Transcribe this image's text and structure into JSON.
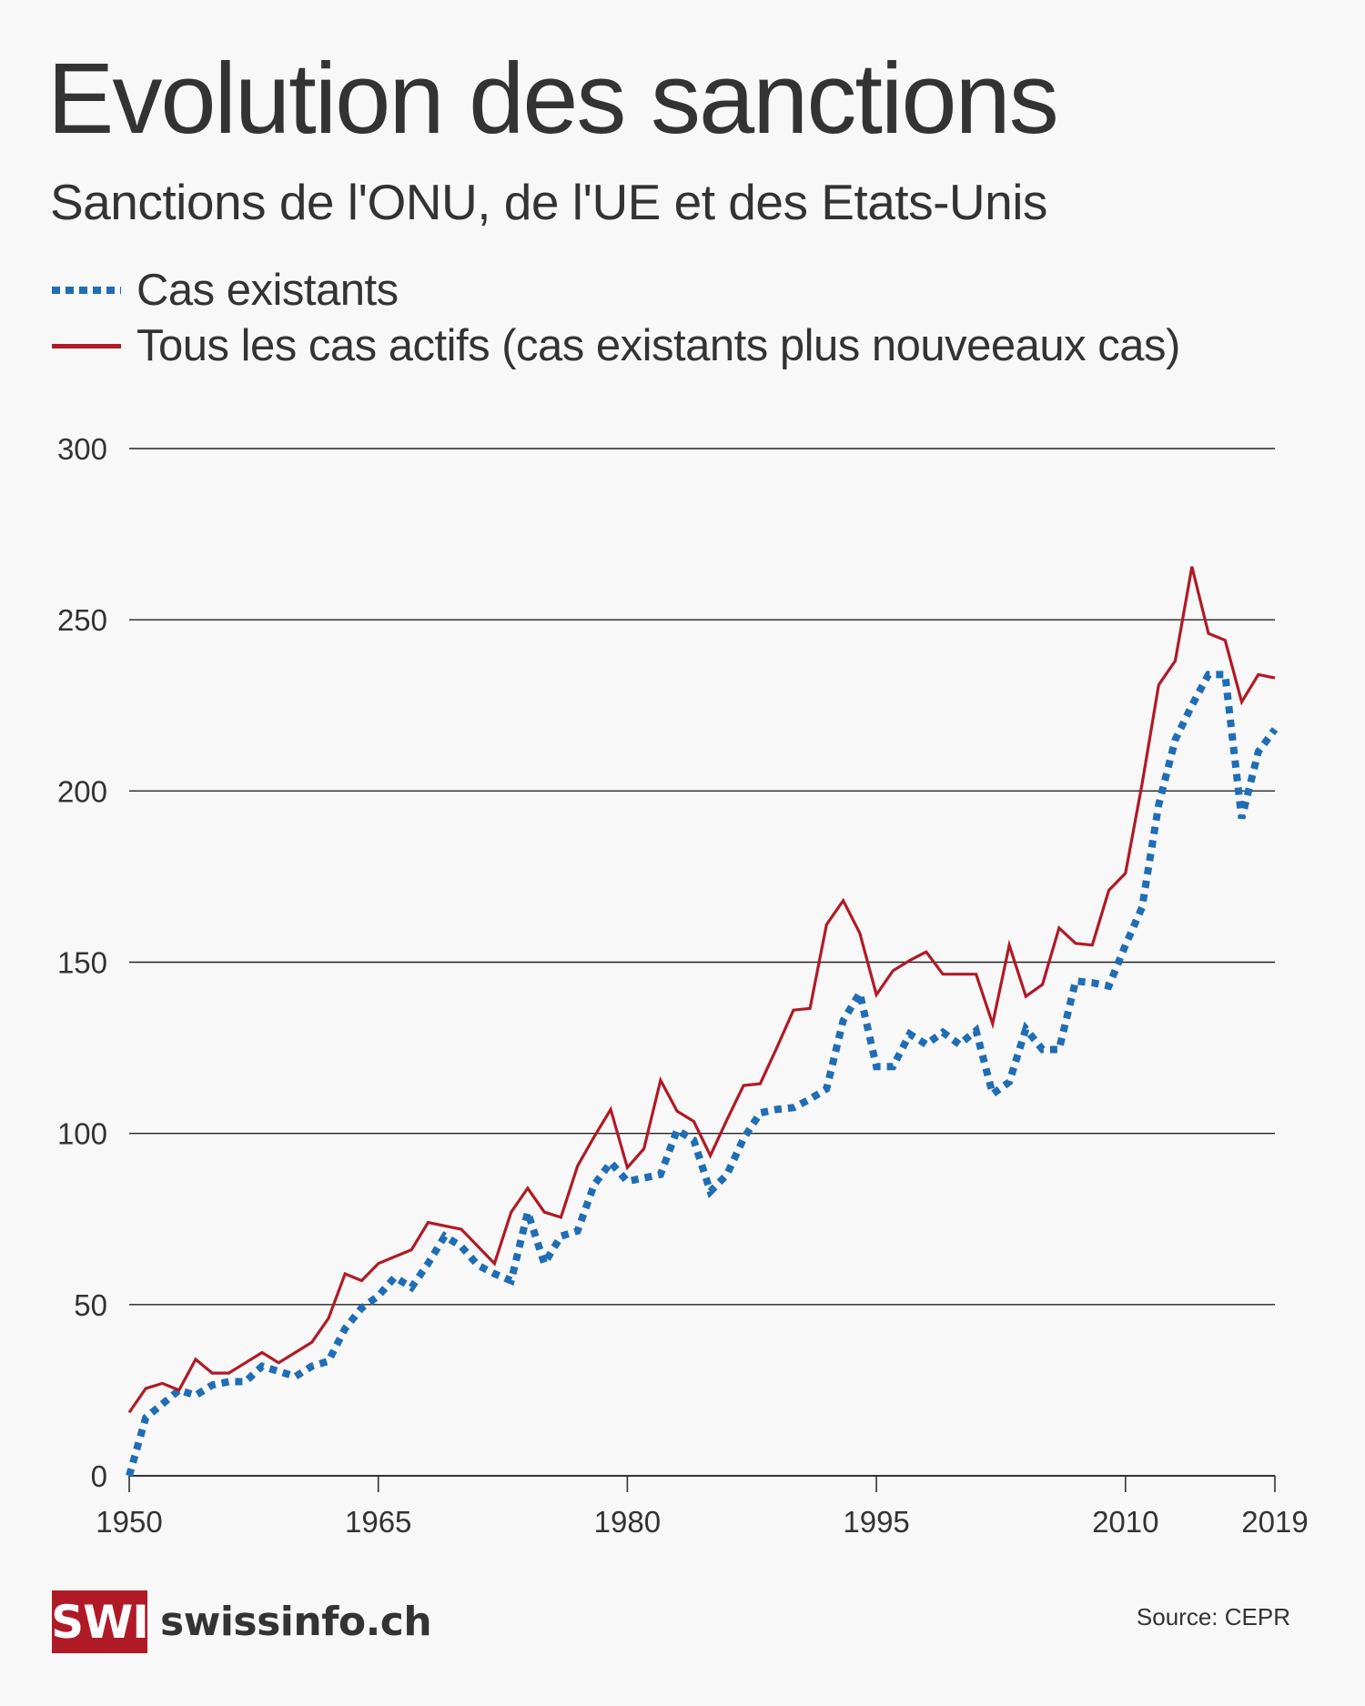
{
  "header": {
    "title": "Evolution des sanctions",
    "subtitle": "Sanctions de l'ONU, de l'UE et des Etats-Unis"
  },
  "legend": [
    {
      "label": "Cas existants",
      "style": "dotted",
      "color": "#1f6db5"
    },
    {
      "label": "Tous les cas actifs (cas existants plus nouveeaux cas)",
      "style": "solid",
      "color": "#b01a26"
    }
  ],
  "footer": {
    "logo_mark": "SWI",
    "logo_text": "swissinfo.ch",
    "source": "Source: CEPR"
  },
  "colors": {
    "background": "#f8f8f8",
    "text": "#333333",
    "existing": "#1f6db5",
    "active": "#b01a26",
    "grid": "#222222"
  },
  "chart_data": {
    "type": "line",
    "title": "Evolution des sanctions",
    "subtitle": "Sanctions de l'ONU, de l'UE et des Etats-Unis",
    "xlabel": "",
    "ylabel": "",
    "xlim": [
      1950,
      2019
    ],
    "ylim": [
      0,
      300
    ],
    "grid": true,
    "legend_position": "top-left",
    "x_ticks": [
      "1950",
      "1965",
      "1980",
      "1995",
      "2010",
      "2019"
    ],
    "y_ticks": [
      "0",
      "50",
      "100",
      "150",
      "200",
      "250",
      "300"
    ],
    "x": [
      1950,
      1951,
      1952,
      1953,
      1954,
      1955,
      1956,
      1957,
      1958,
      1959,
      1960,
      1961,
      1962,
      1963,
      1964,
      1965,
      1966,
      1967,
      1968,
      1969,
      1970,
      1971,
      1972,
      1973,
      1974,
      1975,
      1976,
      1977,
      1978,
      1979,
      1980,
      1981,
      1982,
      1983,
      1984,
      1985,
      1986,
      1987,
      1988,
      1989,
      1990,
      1991,
      1992,
      1993,
      1994,
      1995,
      1996,
      1997,
      1998,
      1999,
      2000,
      2001,
      2002,
      2003,
      2004,
      2005,
      2006,
      2007,
      2008,
      2009,
      2010,
      2011,
      2012,
      2013,
      2014,
      2015,
      2016,
      2017,
      2018,
      2019
    ],
    "series": [
      {
        "name": "Cas existants",
        "style": "dotted",
        "color": "#1f6db5",
        "values": [
          0,
          17,
          21,
          25,
          23.5,
          26.5,
          27.5,
          27.5,
          32,
          30.5,
          29,
          32,
          33.5,
          43,
          49,
          52.5,
          58,
          55,
          62,
          70,
          67,
          61.5,
          59,
          57,
          77,
          62,
          70,
          71.5,
          85,
          91.5,
          86,
          87,
          88,
          101,
          98,
          83,
          88,
          98.5,
          106,
          107,
          107.5,
          110,
          113,
          133,
          141,
          119.5,
          119.5,
          129,
          126,
          129.5,
          126,
          130,
          111.5,
          115,
          130.5,
          124.5,
          124.5,
          144.5,
          144,
          143,
          155,
          166,
          196,
          215,
          225,
          234,
          234,
          192,
          211.5,
          218
        ]
      },
      {
        "name": "Tous les cas actifs (cas existants plus nouveeaux cas)",
        "style": "solid",
        "color": "#b01a26",
        "values": [
          18.5,
          25.5,
          27,
          25,
          34,
          30,
          30,
          33,
          36,
          33,
          36,
          39,
          46,
          59,
          57,
          62,
          64,
          66,
          74,
          73,
          72,
          67,
          62,
          77,
          84,
          77,
          75.5,
          90.5,
          99,
          107,
          90,
          95.5,
          115.5,
          106.5,
          103.5,
          93.5,
          104,
          114,
          114.5,
          125,
          136,
          136.5,
          161,
          168,
          158.5,
          140.5,
          147.5,
          150.5,
          153,
          146.5,
          146.5,
          146.5,
          132,
          155,
          140,
          143.5,
          160,
          155.5,
          155,
          171,
          176,
          202,
          231,
          238,
          265.5,
          246,
          244,
          226,
          234,
          233
        ]
      }
    ]
  }
}
